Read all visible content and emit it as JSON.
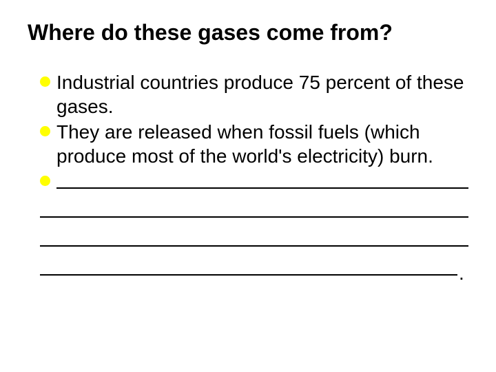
{
  "slide": {
    "title": "Where do these gases come from?",
    "title_fontsize": 32,
    "title_color": "#000000",
    "background_color": "#ffffff",
    "bullets": [
      {
        "text": "Industrial countries produce 75 percent of these gases.",
        "blank": false
      },
      {
        "text": "They are released when fossil fuels (which produce most of the world's electricity) burn.",
        "blank": false
      },
      {
        "text": "",
        "blank": true,
        "blank_lines": 4,
        "trailing_period": true
      }
    ],
    "bullet_fontsize": 28,
    "bullet_color": "#000000",
    "bullet_marker_color": "#ffff00",
    "bullet_marker_size": 15,
    "blank_line_color": "#000000",
    "blank_line_thickness": 2
  }
}
